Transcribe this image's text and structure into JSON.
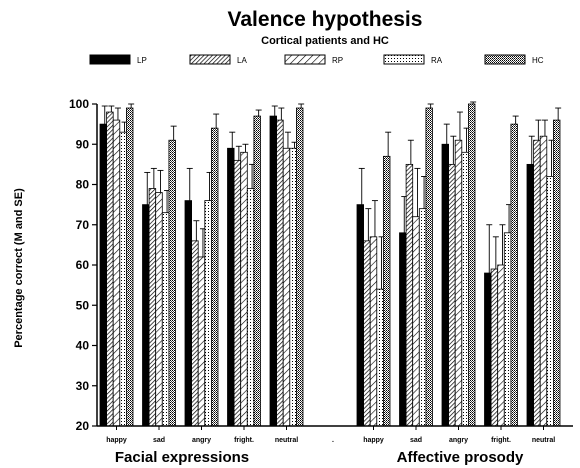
{
  "chart_data": {
    "type": "bar",
    "title": "Valence hypothesis",
    "subtitle": "Cortical patients and HC",
    "ylabel": "Percentage correct (M and SE)",
    "xlabel": "",
    "ylim": [
      20,
      100
    ],
    "yticks": [
      20,
      30,
      40,
      50,
      60,
      70,
      80,
      90,
      100
    ],
    "grid": false,
    "legend_position": "top",
    "separator_label": ".",
    "series_meta": [
      {
        "name": "LP",
        "pattern": "solid"
      },
      {
        "name": "LA",
        "pattern": "hatch-dense"
      },
      {
        "name": "RP",
        "pattern": "hatch-wide"
      },
      {
        "name": "RA",
        "pattern": "dots-sparse"
      },
      {
        "name": "HC",
        "pattern": "dots-dense"
      }
    ],
    "groups": [
      {
        "label": "Facial expressions",
        "categories": [
          "happy",
          "sad",
          "angry",
          "fright.",
          "neutral"
        ],
        "series": [
          {
            "name": "LP",
            "values": [
              95,
              75,
              76,
              89,
              97
            ],
            "errors": [
              4.5,
              8,
              8,
              4,
              2.5
            ]
          },
          {
            "name": "LA",
            "values": [
              98,
              79,
              66,
              86,
              96
            ],
            "errors": [
              1.5,
              5,
              5,
              3.5,
              3
            ]
          },
          {
            "name": "RP",
            "values": [
              96,
              78,
              62,
              88,
              89
            ],
            "errors": [
              3,
              5.5,
              7,
              2,
              4
            ]
          },
          {
            "name": "RA",
            "values": [
              93,
              73,
              76,
              79,
              89
            ],
            "errors": [
              2.5,
              5.5,
              7,
              6,
              1.5
            ]
          },
          {
            "name": "HC",
            "values": [
              99,
              91,
              94,
              97,
              99
            ],
            "errors": [
              1,
              3.5,
              3.5,
              1.5,
              1
            ]
          }
        ]
      },
      {
        "label": "Affective prosody",
        "categories": [
          "happy",
          "sad",
          "angry",
          "fright.",
          "neutral"
        ],
        "series": [
          {
            "name": "LP",
            "values": [
              75,
              68,
              90,
              58,
              85
            ],
            "errors": [
              9,
              9,
              5,
              12,
              7
            ]
          },
          {
            "name": "LA",
            "values": [
              66,
              85,
              85,
              59,
              91
            ],
            "errors": [
              8,
              6,
              7,
              8,
              5
            ]
          },
          {
            "name": "RP",
            "values": [
              67,
              72,
              91,
              60,
              92
            ],
            "errors": [
              9,
              12,
              7,
              10,
              4
            ]
          },
          {
            "name": "RA",
            "values": [
              54,
              74,
              88,
              68,
              82
            ],
            "errors": [
              13,
              8,
              6,
              7,
              9
            ]
          },
          {
            "name": "HC",
            "values": [
              87,
              99,
              100,
              95,
              96
            ],
            "errors": [
              6,
              1,
              0.5,
              2,
              3
            ]
          }
        ]
      }
    ]
  }
}
